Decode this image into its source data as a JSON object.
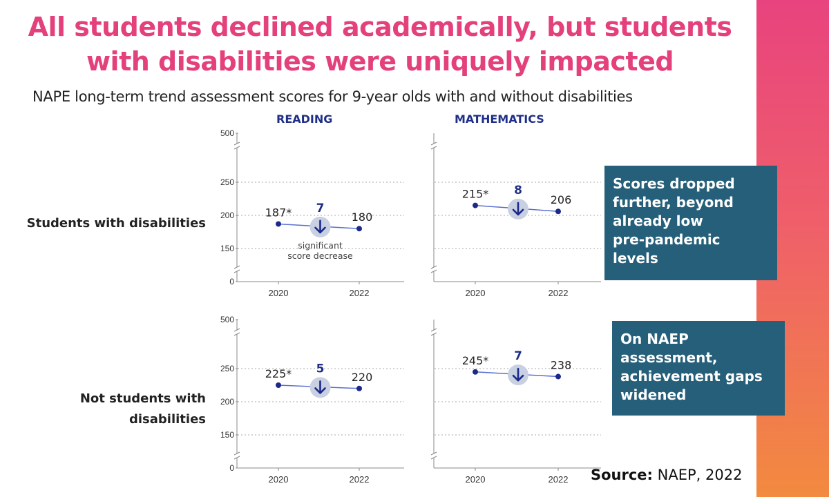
{
  "headline": {
    "line1": "All students declined academically, but students",
    "line2": "with disabilities were uniquely impacted"
  },
  "subtitle": "NAPE long-term trend assessment scores for 9-year olds with and without disabilities",
  "columns": [
    "READING",
    "MATHEMATICS"
  ],
  "rows": {
    "swd": "Students with disabilities",
    "nswd_line1": "Not students with",
    "nswd_line2": "disabilities"
  },
  "callouts": {
    "first": [
      "Scores dropped",
      "further, beyond",
      "already low",
      "pre-pandemic",
      "levels"
    ],
    "second": [
      "On NAEP",
      "assessment,",
      "achievement gaps",
      "widened"
    ]
  },
  "source": {
    "label": "Source:",
    "text": "NAEP, 2022"
  },
  "colors": {
    "accent": "#e4407b",
    "navy": "#1f2f87",
    "line": "#5a6fd0",
    "marker": "#1b2a8a",
    "circle": "#c8d0e2",
    "callout_bg": "#255f7a"
  },
  "chart_data": [
    {
      "type": "line",
      "panel": "Reading — Students with disabilities",
      "x": [
        "2020",
        "2022"
      ],
      "values": [
        187,
        180
      ],
      "point_labels": [
        "187*",
        "180"
      ],
      "change": "7",
      "note": [
        "significant",
        "score decrease"
      ],
      "yticks": [
        "500",
        "250",
        "200",
        "150",
        "0"
      ],
      "axis_break": true
    },
    {
      "type": "line",
      "panel": "Mathematics — Students with disabilities",
      "x": [
        "2020",
        "2022"
      ],
      "values": [
        215,
        206
      ],
      "point_labels": [
        "215*",
        "206"
      ],
      "change": "8",
      "yticks": [],
      "axis_break": true
    },
    {
      "type": "line",
      "panel": "Reading — Not students with disabilities",
      "x": [
        "2020",
        "2022"
      ],
      "values": [
        225,
        220
      ],
      "point_labels": [
        "225*",
        "220"
      ],
      "change": "5",
      "yticks": [
        "500",
        "250",
        "200",
        "150",
        "0"
      ],
      "axis_break": true
    },
    {
      "type": "line",
      "panel": "Mathematics — Not students with disabilities",
      "x": [
        "2020",
        "2022"
      ],
      "values": [
        245,
        238
      ],
      "point_labels": [
        "245*",
        "238"
      ],
      "change": "7",
      "yticks": [],
      "axis_break": true
    }
  ]
}
